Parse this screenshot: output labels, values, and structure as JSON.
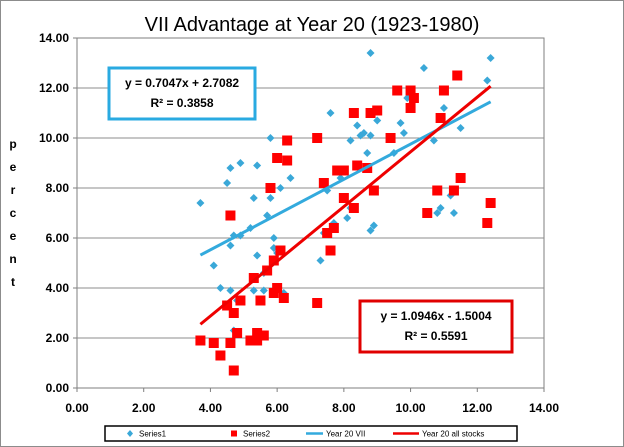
{
  "colors": {
    "series1": "#3aa8d8",
    "series2": "#ff0000",
    "trend1": "#33aadd",
    "trend2": "#ee0000",
    "grid": "#8c8c8c",
    "plot_border": "#7f7f7f"
  },
  "chart_data": {
    "type": "scatter",
    "title": "VII Advantage at Year 20 (1923-1980)",
    "ylabel": "percent",
    "xlabel": "",
    "xlim": [
      0,
      14
    ],
    "ylim": [
      0,
      14
    ],
    "x_ticks": [
      "0.00",
      "2.00",
      "4.00",
      "6.00",
      "8.00",
      "10.00",
      "12.00",
      "14.00"
    ],
    "y_ticks": [
      "0.00",
      "2.00",
      "4.00",
      "6.00",
      "8.00",
      "10.00",
      "12.00",
      "14.00"
    ],
    "grid": "horizontal major gridlines",
    "legend_position": "bottom",
    "series": [
      {
        "name": "Series1",
        "marker": "diamond",
        "points": [
          [
            3.7,
            7.4
          ],
          [
            4.1,
            4.9
          ],
          [
            4.3,
            4.0
          ],
          [
            4.5,
            8.2
          ],
          [
            4.6,
            5.7
          ],
          [
            4.6,
            8.8
          ],
          [
            4.6,
            3.9
          ],
          [
            4.7,
            2.3
          ],
          [
            4.7,
            6.1
          ],
          [
            4.8,
            3.5
          ],
          [
            4.9,
            9.0
          ],
          [
            4.9,
            6.1
          ],
          [
            5.2,
            6.4
          ],
          [
            5.3,
            3.9
          ],
          [
            5.3,
            7.6
          ],
          [
            5.4,
            8.9
          ],
          [
            5.4,
            5.3
          ],
          [
            5.6,
            4.6
          ],
          [
            5.6,
            3.9
          ],
          [
            5.7,
            6.9
          ],
          [
            5.8,
            10.0
          ],
          [
            5.8,
            7.6
          ],
          [
            5.9,
            6.0
          ],
          [
            5.9,
            5.6
          ],
          [
            6.0,
            9.2
          ],
          [
            6.0,
            5.4
          ],
          [
            6.1,
            8.0
          ],
          [
            6.2,
            3.8
          ],
          [
            6.4,
            8.4
          ],
          [
            7.3,
            5.1
          ],
          [
            7.4,
            6.2
          ],
          [
            7.5,
            7.9
          ],
          [
            7.6,
            11.0
          ],
          [
            7.7,
            6.6
          ],
          [
            7.8,
            8.7
          ],
          [
            7.9,
            8.4
          ],
          [
            8.1,
            6.8
          ],
          [
            8.2,
            7.2
          ],
          [
            8.2,
            9.9
          ],
          [
            8.4,
            10.5
          ],
          [
            8.5,
            10.1
          ],
          [
            8.6,
            10.2
          ],
          [
            8.7,
            9.4
          ],
          [
            8.8,
            10.1
          ],
          [
            8.8,
            13.4
          ],
          [
            8.8,
            6.3
          ],
          [
            8.9,
            6.5
          ],
          [
            9.0,
            10.7
          ],
          [
            9.5,
            9.4
          ],
          [
            9.7,
            10.6
          ],
          [
            9.8,
            10.2
          ],
          [
            9.9,
            11.6
          ],
          [
            10.0,
            11.9
          ],
          [
            10.4,
            12.8
          ],
          [
            10.7,
            9.9
          ],
          [
            10.8,
            7.0
          ],
          [
            10.9,
            7.2
          ],
          [
            11.0,
            11.2
          ],
          [
            11.2,
            7.7
          ],
          [
            11.3,
            7.0
          ],
          [
            11.5,
            10.4
          ],
          [
            12.3,
            12.3
          ],
          [
            12.4,
            13.2
          ]
        ]
      },
      {
        "name": "Series2",
        "marker": "square",
        "points": [
          [
            3.7,
            1.9
          ],
          [
            4.1,
            1.8
          ],
          [
            4.3,
            1.3
          ],
          [
            4.5,
            3.3
          ],
          [
            4.6,
            1.8
          ],
          [
            4.6,
            6.9
          ],
          [
            4.7,
            0.7
          ],
          [
            4.7,
            3.0
          ],
          [
            4.8,
            2.2
          ],
          [
            4.9,
            3.5
          ],
          [
            5.2,
            1.9
          ],
          [
            5.3,
            4.4
          ],
          [
            5.4,
            2.2
          ],
          [
            5.4,
            1.9
          ],
          [
            5.5,
            3.5
          ],
          [
            5.6,
            2.1
          ],
          [
            5.7,
            4.7
          ],
          [
            5.8,
            8.0
          ],
          [
            5.9,
            5.1
          ],
          [
            5.9,
            3.8
          ],
          [
            6.0,
            9.2
          ],
          [
            6.0,
            4.0
          ],
          [
            6.1,
            5.5
          ],
          [
            6.2,
            3.6
          ],
          [
            6.3,
            9.9
          ],
          [
            6.3,
            9.1
          ],
          [
            7.2,
            3.4
          ],
          [
            7.2,
            10.0
          ],
          [
            7.4,
            8.2
          ],
          [
            7.5,
            6.2
          ],
          [
            7.6,
            5.5
          ],
          [
            7.7,
            6.4
          ],
          [
            7.8,
            8.7
          ],
          [
            8.0,
            7.6
          ],
          [
            8.0,
            8.7
          ],
          [
            8.3,
            7.2
          ],
          [
            8.3,
            11.0
          ],
          [
            8.4,
            8.9
          ],
          [
            8.7,
            8.8
          ],
          [
            8.8,
            11.0
          ],
          [
            8.9,
            7.9
          ],
          [
            9.0,
            11.1
          ],
          [
            9.4,
            10.0
          ],
          [
            9.6,
            11.9
          ],
          [
            10.0,
            11.9
          ],
          [
            10.0,
            11.2
          ],
          [
            10.1,
            11.6
          ],
          [
            10.5,
            7.0
          ],
          [
            10.8,
            7.9
          ],
          [
            10.9,
            10.8
          ],
          [
            11.0,
            11.9
          ],
          [
            11.3,
            7.9
          ],
          [
            11.4,
            12.5
          ],
          [
            11.5,
            8.4
          ],
          [
            12.3,
            6.6
          ],
          [
            12.4,
            7.4
          ]
        ]
      }
    ],
    "trendlines": [
      {
        "name": "Year 20 VII",
        "of_series": "Series1",
        "slope": 0.7047,
        "intercept": 2.7082,
        "x_range": [
          3.7,
          12.4
        ],
        "equation": "y = 0.7047x + 2.7082",
        "r2": "R² = 0.3858"
      },
      {
        "name": "Year 20 all stocks",
        "of_series": "Series2",
        "slope": 1.0946,
        "intercept": -1.5004,
        "x_range": [
          3.7,
          12.4
        ],
        "equation": "y = 1.0946x - 1.5004",
        "r2": "R² = 0.5591"
      }
    ]
  }
}
